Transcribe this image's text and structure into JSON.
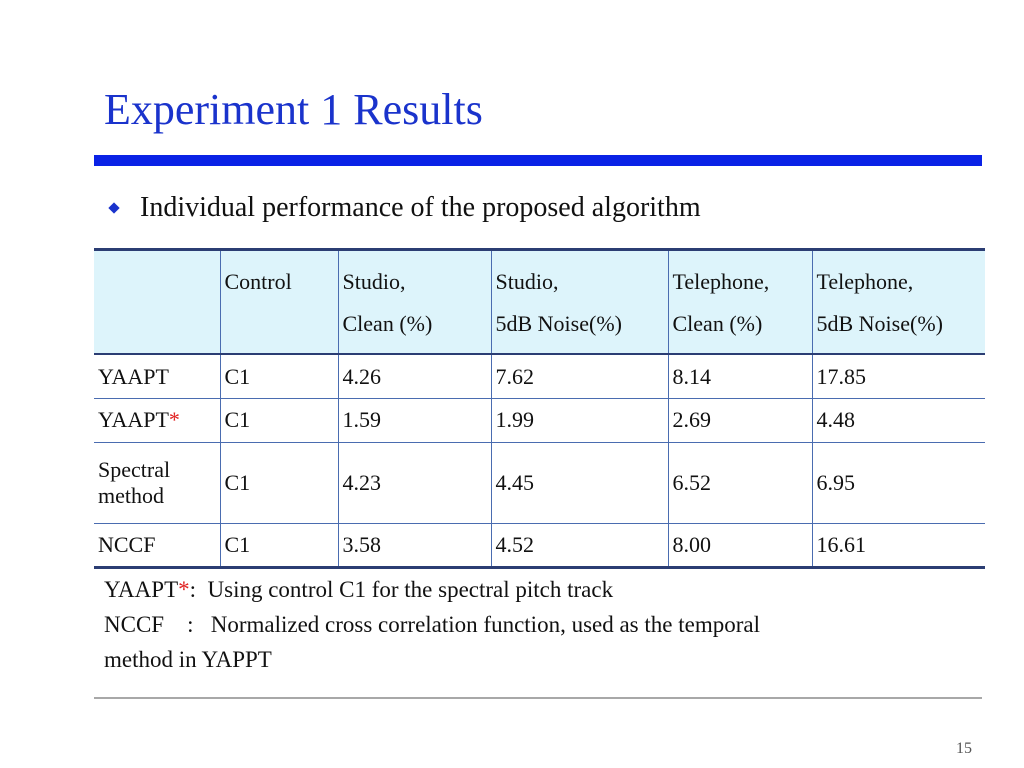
{
  "slide": {
    "title": "Experiment 1 Results",
    "page_number": "15",
    "accent_color": "#1a33cc",
    "rule_color": "#0a22e6"
  },
  "bullet": {
    "icon": "diamond-bullet-icon",
    "text": "Individual performance of the proposed algorithm"
  },
  "table": {
    "header": {
      "col0": "",
      "col1": [
        "Control"
      ],
      "col2": [
        "Studio,",
        "Clean (%)"
      ],
      "col3": [
        "Studio,",
        "5dB Noise(%)"
      ],
      "col4": [
        "Telephone,",
        "Clean (%)"
      ],
      "col5": [
        "Telephone,",
        "5dB Noise(%)"
      ]
    },
    "rows": [
      {
        "method": "YAAPT",
        "marker": "",
        "control": "C1",
        "studio_clean": "4.26",
        "studio_noise": "7.62",
        "tel_clean": "8.14",
        "tel_noise": "17.85"
      },
      {
        "method": "YAAPT",
        "marker": "*",
        "control": "C1",
        "studio_clean": "1.59",
        "studio_noise": "1.99",
        "tel_clean": "2.69",
        "tel_noise": "4.48"
      },
      {
        "method_lines": [
          "Spectral",
          "method"
        ],
        "control": "C1",
        "studio_clean": "4.23",
        "studio_noise": "4.45",
        "tel_clean": "6.52",
        "tel_noise": "6.95"
      },
      {
        "method": "NCCF",
        "marker": "",
        "control": "C1",
        "studio_clean": "3.58",
        "studio_noise": "4.52",
        "tel_clean": "8.00",
        "tel_noise": "16.61"
      }
    ],
    "header_bg": "#ddf4fb",
    "border_color": "#2b3d73"
  },
  "notes": {
    "line1_term": "YAAPT",
    "line1_marker": "*",
    "line1_text": ":  Using control C1 for the spectral pitch track",
    "line2": "NCCF    :   Normalized cross correlation function, used as the temporal",
    "line3": "method in YAPPT",
    "marker_color": "#e02020"
  }
}
